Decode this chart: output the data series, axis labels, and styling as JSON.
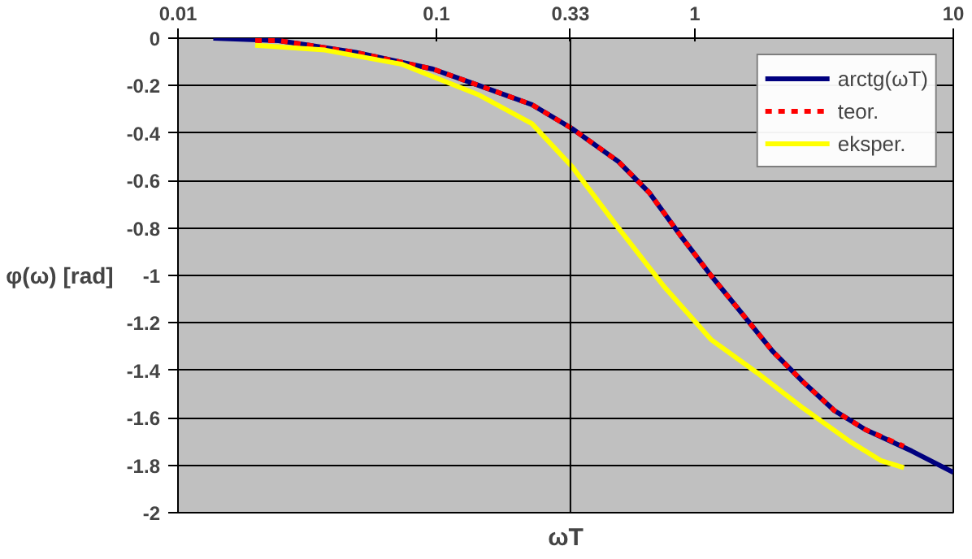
{
  "chart_data": {
    "type": "line",
    "xlabel": "ωT",
    "ylabel": "φ(ω) [rad]",
    "log": "x",
    "xlim": [
      0.01,
      10
    ],
    "xticks": [
      0.01,
      0.1,
      0.33,
      1,
      10
    ],
    "ylim": [
      -2,
      0
    ],
    "yticks": [
      0,
      -0.2,
      -0.4,
      -0.6,
      -0.8,
      -1,
      -1.2,
      -1.4,
      -1.6,
      -1.8,
      -2
    ],
    "grid": "y",
    "legend": "top right",
    "ref_lines": [
      {
        "axis": "x",
        "value": 0.33,
        "color": "#000000"
      }
    ],
    "series": [
      {
        "name": "arctg(ωT)",
        "color": "#00007f",
        "line_style": "solid",
        "x": [
          0.0137,
          0.0245,
          0.0487,
          0.0969,
          0.1465,
          0.234,
          0.334,
          0.506,
          0.665,
          0.877,
          1.154,
          1.52,
          2.0,
          2.63,
          3.47,
          4.57,
          6.9,
          10
        ],
        "values": [
          0,
          -0.01,
          -0.06,
          -0.13,
          -0.2,
          -0.28,
          -0.38,
          -0.52,
          -0.65,
          -0.83,
          -1.0,
          -1.16,
          -1.32,
          -1.45,
          -1.57,
          -1.65,
          -1.74,
          -1.83
        ]
      },
      {
        "name": "teor.",
        "color": "#ff0000",
        "line_style": "dashed",
        "x": [
          0.0199,
          0.0245,
          0.0487,
          0.0969,
          0.1465,
          0.234,
          0.334,
          0.506,
          0.665,
          0.877,
          1.154,
          1.52,
          2.0,
          2.63,
          3.47,
          4.57,
          6.44
        ],
        "values": [
          -0.01,
          -0.01,
          -0.06,
          -0.13,
          -0.2,
          -0.28,
          -0.38,
          -0.52,
          -0.65,
          -0.83,
          -1.0,
          -1.16,
          -1.32,
          -1.45,
          -1.57,
          -1.65,
          -1.72
        ]
      },
      {
        "name": "eksper.",
        "color": "#ffff00",
        "line_style": "solid",
        "x": [
          0.0199,
          0.037,
          0.0736,
          0.1465,
          0.234,
          0.334,
          0.506,
          0.764,
          1.154,
          1.74,
          2.63,
          3.98,
          5.24,
          6.44
        ],
        "values": [
          -0.03,
          -0.05,
          -0.11,
          -0.24,
          -0.36,
          -0.54,
          -0.8,
          -1.05,
          -1.27,
          -1.41,
          -1.56,
          -1.7,
          -1.78,
          -1.81
        ]
      }
    ]
  }
}
